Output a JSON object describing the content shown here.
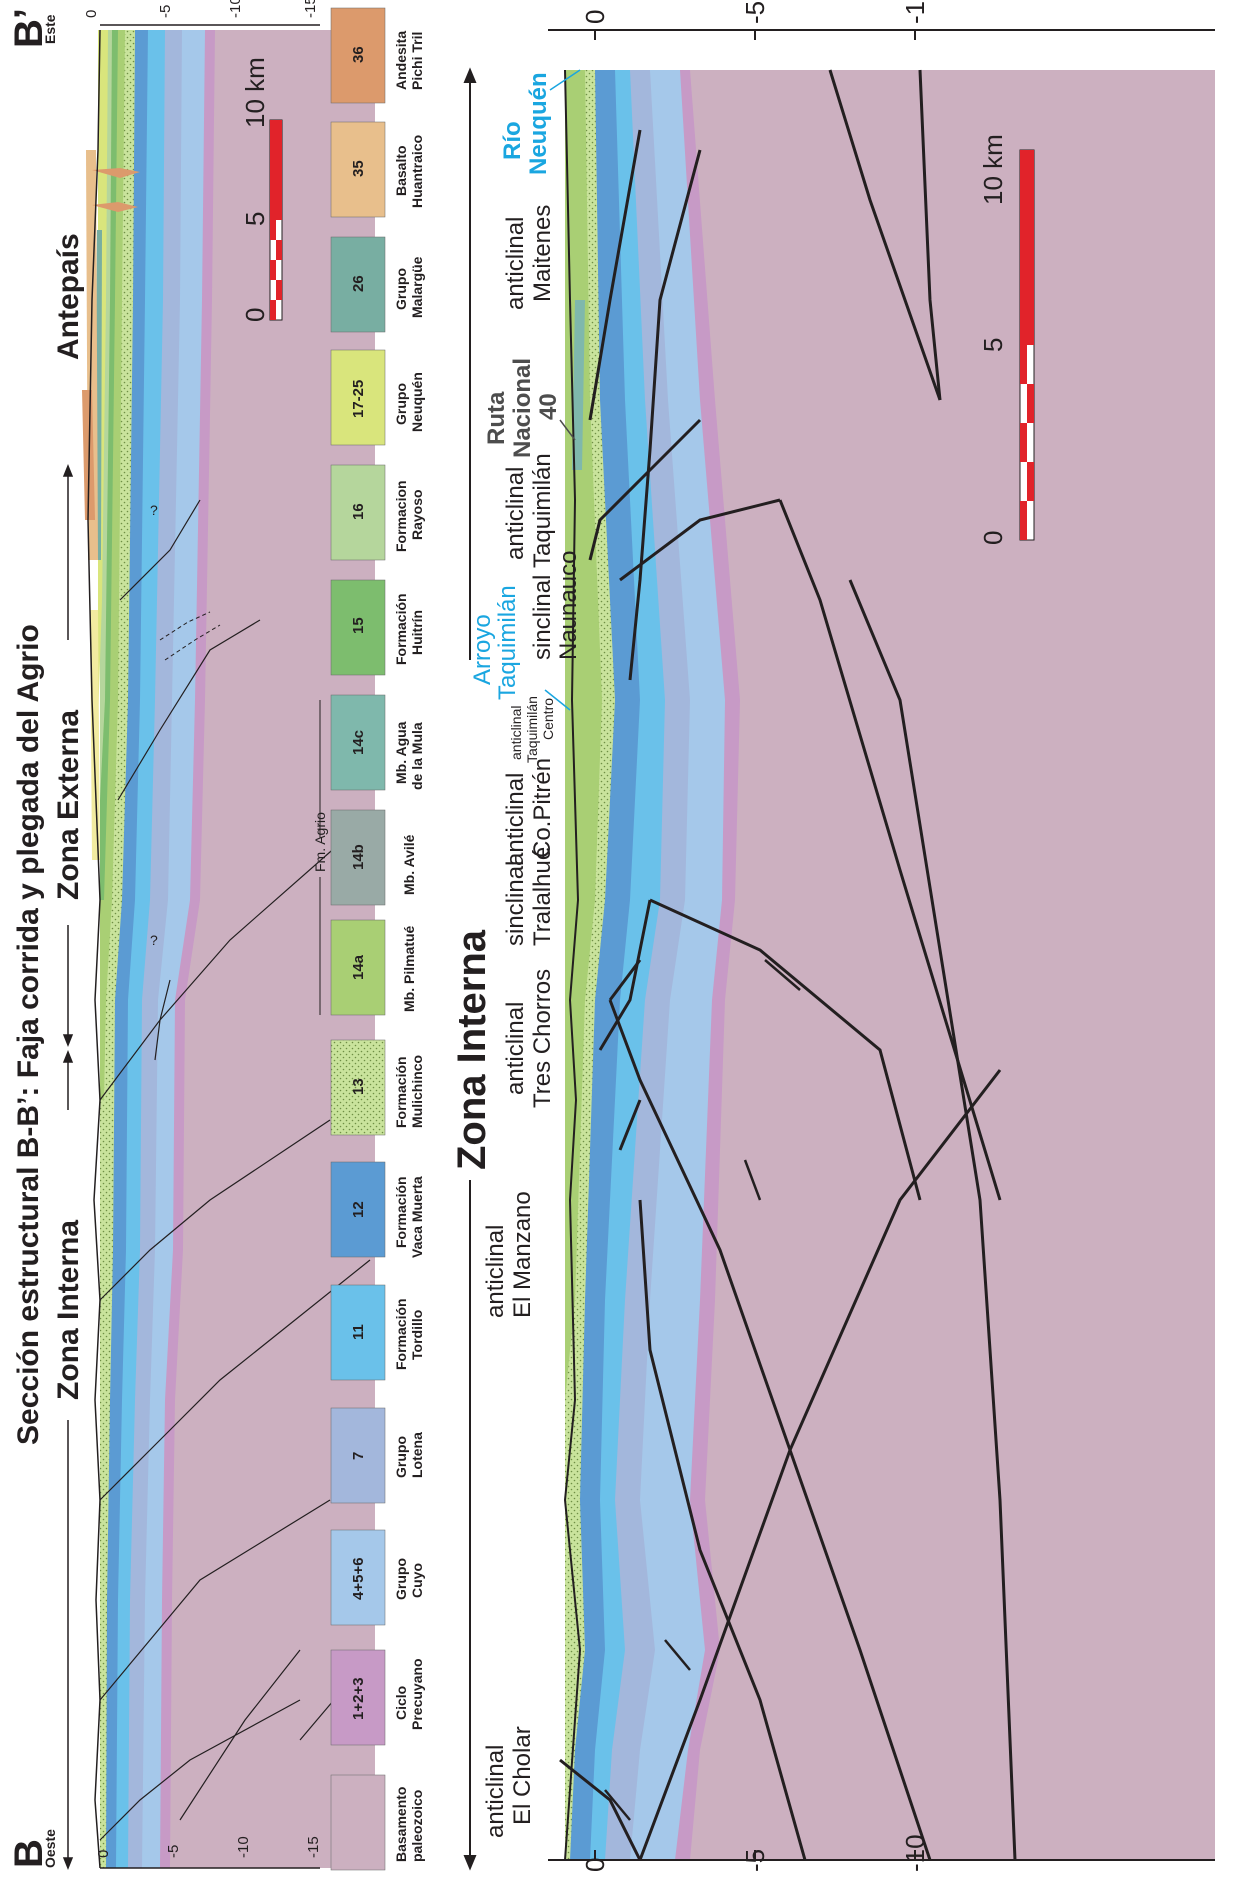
{
  "figure": {
    "title": "Sección estructural B-B’: Faja corrida y plegada del Agrio",
    "top_section": {
      "end_left": "B",
      "end_right": "B’",
      "dir_left": "Oeste",
      "dir_right": "Este",
      "zone_interna": "Zona Interna",
      "zone_externa": "Zona Externa",
      "antepais": "Antepaís",
      "depth_ticks": [
        "0",
        "-5",
        "-10",
        "-15"
      ],
      "question_marks": [
        "?",
        "?"
      ],
      "scale": {
        "labels": [
          "0",
          "5",
          "10 km"
        ]
      }
    },
    "bottom_section": {
      "zone": "Zona Interna",
      "depth_ticks": [
        "0",
        "-5",
        "-10"
      ],
      "structures": [
        {
          "l1": "anticlinal",
          "l2": "El Cholar"
        },
        {
          "l1": "anticlinal",
          "l2": "El Manzano"
        },
        {
          "l1": "anticlinal",
          "l2": "Tres Chorros"
        },
        {
          "l1": "sinclinal",
          "l2": "Tralalhué"
        },
        {
          "l1": "anticlinal",
          "l2": "Co.Pitrén"
        },
        {
          "l1": "anticlinal",
          "l2": "Taquimilán",
          "l3": "Centro"
        },
        {
          "l1": "sinclinal",
          "l2": "Naunauco"
        },
        {
          "l1": "anticlinal",
          "l2": "Taquimilán"
        },
        {
          "l1": "anticlinal",
          "l2": "Maitenes"
        }
      ],
      "rivers": {
        "arroyo_l1": "Arroyo",
        "arroyo_l2": "Taquimilán",
        "rio_l1": "Río",
        "rio_l2": "Neuquén"
      },
      "ruta": {
        "l1": "Ruta",
        "l2": "Nacional",
        "l3": "40"
      },
      "scale": {
        "labels": [
          "0",
          "5",
          "10 km"
        ]
      }
    },
    "legend": {
      "group_label": "Fm. Agrio",
      "items": [
        {
          "code": "",
          "name1": "Basamento",
          "name2": "paleozoico",
          "color": "#ccb0c0"
        },
        {
          "code": "1+2+3",
          "name1": "Ciclo",
          "name2": "Precuyano",
          "color": "#c79ac6"
        },
        {
          "code": "4+5+6",
          "name1": "Grupo",
          "name2": "Cuyo",
          "color": "#a5c8ea"
        },
        {
          "code": "7",
          "name1": "Grupo",
          "name2": "Lotena",
          "color": "#a3b7dc"
        },
        {
          "code": "11",
          "name1": "Formación",
          "name2": "Tordillo",
          "color": "#6ac1ea"
        },
        {
          "code": "12",
          "name1": "Formación",
          "name2": "Vaca Muerta",
          "color": "#5b9bd3"
        },
        {
          "code": "13",
          "name1": "Formación",
          "name2": "Mulichinco",
          "color": "#c9e39c"
        },
        {
          "code": "14a",
          "name1": "Mb. Pilmatué",
          "name2": "",
          "color": "#a9cf74"
        },
        {
          "code": "14b",
          "name1": "Mb. Avilé",
          "name2": "",
          "color": "#99aaa6"
        },
        {
          "code": "14c",
          "name1": "Mb. Agua",
          "name2": "de la Mula",
          "color": "#7fb8ac"
        },
        {
          "code": "15",
          "name1": "Formación",
          "name2": "Huitrín",
          "color": "#7dbd6e"
        },
        {
          "code": "16",
          "name1": "Formacion",
          "name2": "Rayoso",
          "color": "#b5d69c"
        },
        {
          "code": "17-25",
          "name1": "Grupo",
          "name2": "Neuquén",
          "color": "#d9e57c"
        },
        {
          "code": "26",
          "name1": "Grupo",
          "name2": "Malargüe",
          "color": "#78aea2"
        },
        {
          "code": "35",
          "name1": "Basalto",
          "name2": "Huantraico",
          "color": "#e8bf8c"
        },
        {
          "code": "36",
          "name1": "Andesita",
          "name2": "Pichi Tril",
          "color": "#dc9a6c"
        }
      ]
    }
  }
}
